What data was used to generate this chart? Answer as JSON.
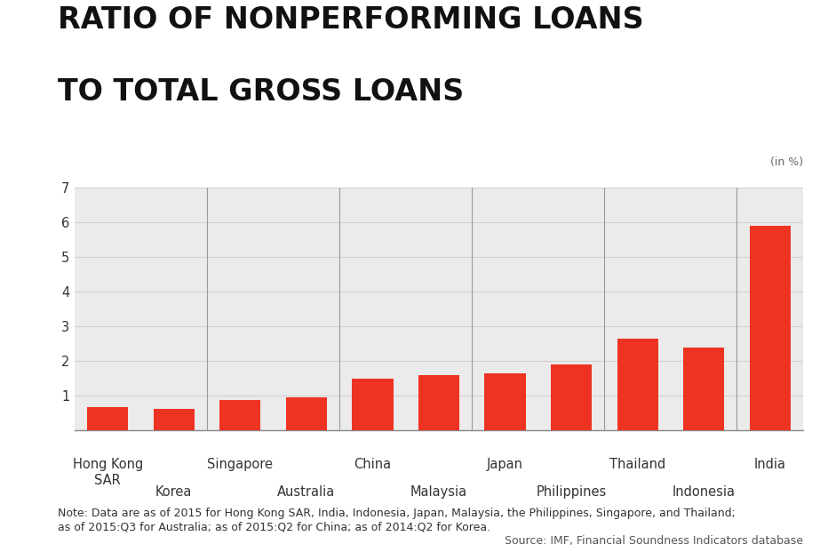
{
  "categories": [
    "Hong Kong\nSAR",
    "Korea",
    "Singapore",
    "Australia",
    "China",
    "Malaysia",
    "Japan",
    "Philippines",
    "Thailand",
    "Indonesia",
    "India"
  ],
  "values": [
    0.67,
    0.62,
    0.88,
    0.97,
    1.5,
    1.6,
    1.65,
    1.9,
    2.65,
    2.38,
    5.9
  ],
  "bar_color": "#ee3322",
  "title_line1": "RATIO OF NONPERFORMING LOANS",
  "title_line2": "TO TOTAL GROSS LOANS",
  "unit_label": "(in %)",
  "ylim": [
    0,
    7
  ],
  "yticks": [
    0,
    1,
    2,
    3,
    4,
    5,
    6,
    7
  ],
  "background_color": "#ebebeb",
  "note_text": "Note: Data are as of 2015 for Hong Kong SAR, India, Indonesia, Japan, Malaysia, the Philippines, Singapore, and Thailand;\nas of 2015:Q3 for Australia; as of 2015:Q2 for China; as of 2014:Q2 for Korea.",
  "source_text": "Source: IMF, Financial Soundness Indicators database",
  "title_fontsize": 24,
  "tick_fontsize": 10.5,
  "note_fontsize": 9,
  "source_fontsize": 9,
  "title_color": "#111111",
  "tick_color": "#333333",
  "grid_color": "#d0d0d0",
  "separator_positions": [
    1.5,
    3.5,
    5.5,
    7.5,
    9.5
  ]
}
